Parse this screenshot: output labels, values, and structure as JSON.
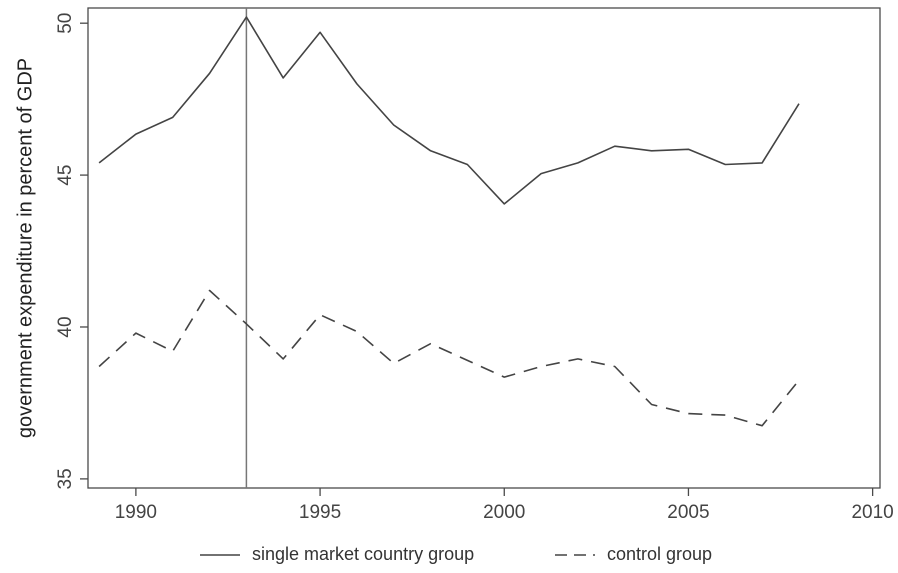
{
  "chart_data": {
    "type": "line",
    "xlabel": "",
    "ylabel": "government expenditure in percent of GDP",
    "xlim": [
      1988.7,
      2010.2
    ],
    "ylim": [
      34.7,
      50.5
    ],
    "xticks": [
      1990,
      1995,
      2000,
      2005,
      2010
    ],
    "yticks": [
      35,
      40,
      45,
      50
    ],
    "x": [
      1989,
      1990,
      1991,
      1992,
      1993,
      1994,
      1995,
      1996,
      1997,
      1998,
      1999,
      2000,
      2001,
      2002,
      2003,
      2004,
      2005,
      2006,
      2007,
      2008
    ],
    "series": [
      {
        "name": "single market country group",
        "style": "solid",
        "color": "#444444",
        "values": [
          45.4,
          46.35,
          46.9,
          48.35,
          50.2,
          48.2,
          49.7,
          48.0,
          46.65,
          45.8,
          45.35,
          44.05,
          45.05,
          45.4,
          45.95,
          45.8,
          45.85,
          45.35,
          45.4,
          47.35
        ]
      },
      {
        "name": "control group",
        "style": "dashed",
        "color": "#444444",
        "values": [
          38.7,
          39.8,
          39.2,
          41.2,
          40.1,
          38.95,
          40.4,
          39.85,
          38.8,
          39.45,
          38.9,
          38.35,
          38.7,
          38.95,
          38.7,
          37.45,
          37.15,
          37.1,
          36.75,
          38.25
        ]
      }
    ],
    "reference_line": {
      "x": 1993,
      "color": "#777777"
    },
    "grid": false,
    "legend_position": "bottom"
  }
}
